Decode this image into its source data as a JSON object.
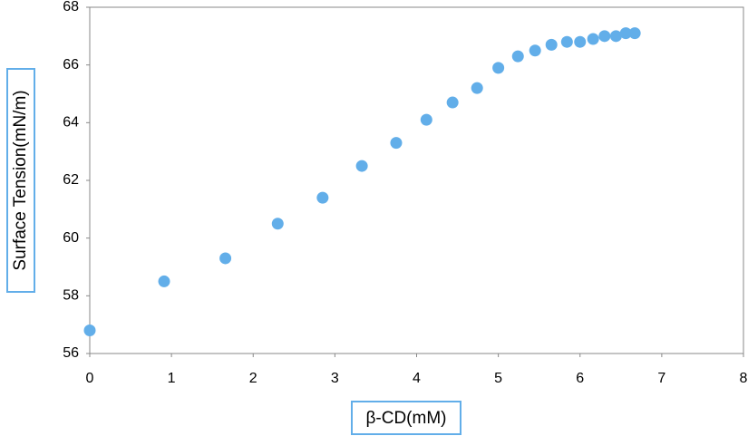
{
  "chart_data": {
    "type": "scatter",
    "x_label": "β-CD(mM)",
    "y_label": "Surface Tension(mN/m)",
    "series": [
      {
        "color": "#62aee9",
        "x": [
          0,
          0.91,
          1.66,
          2.3,
          2.85,
          3.33,
          3.75,
          4.12,
          4.44,
          4.74,
          5.0,
          5.24,
          5.45,
          5.65,
          5.84,
          6.0,
          6.16,
          6.3,
          6.44,
          6.56,
          6.67
        ],
        "values": [
          56.8,
          58.5,
          59.3,
          60.5,
          61.4,
          62.5,
          63.3,
          64.1,
          64.7,
          65.2,
          65.9,
          66.3,
          66.5,
          66.7,
          66.8,
          66.8,
          66.9,
          67.0,
          67.0,
          67.1,
          67.1
        ]
      }
    ],
    "xlim": [
      0,
      8
    ],
    "xticks": [
      0,
      1,
      2,
      3,
      4,
      5,
      6,
      7,
      8
    ],
    "ylim": [
      56,
      68
    ],
    "yticks": [
      56,
      58,
      60,
      62,
      64,
      66,
      68
    ]
  }
}
